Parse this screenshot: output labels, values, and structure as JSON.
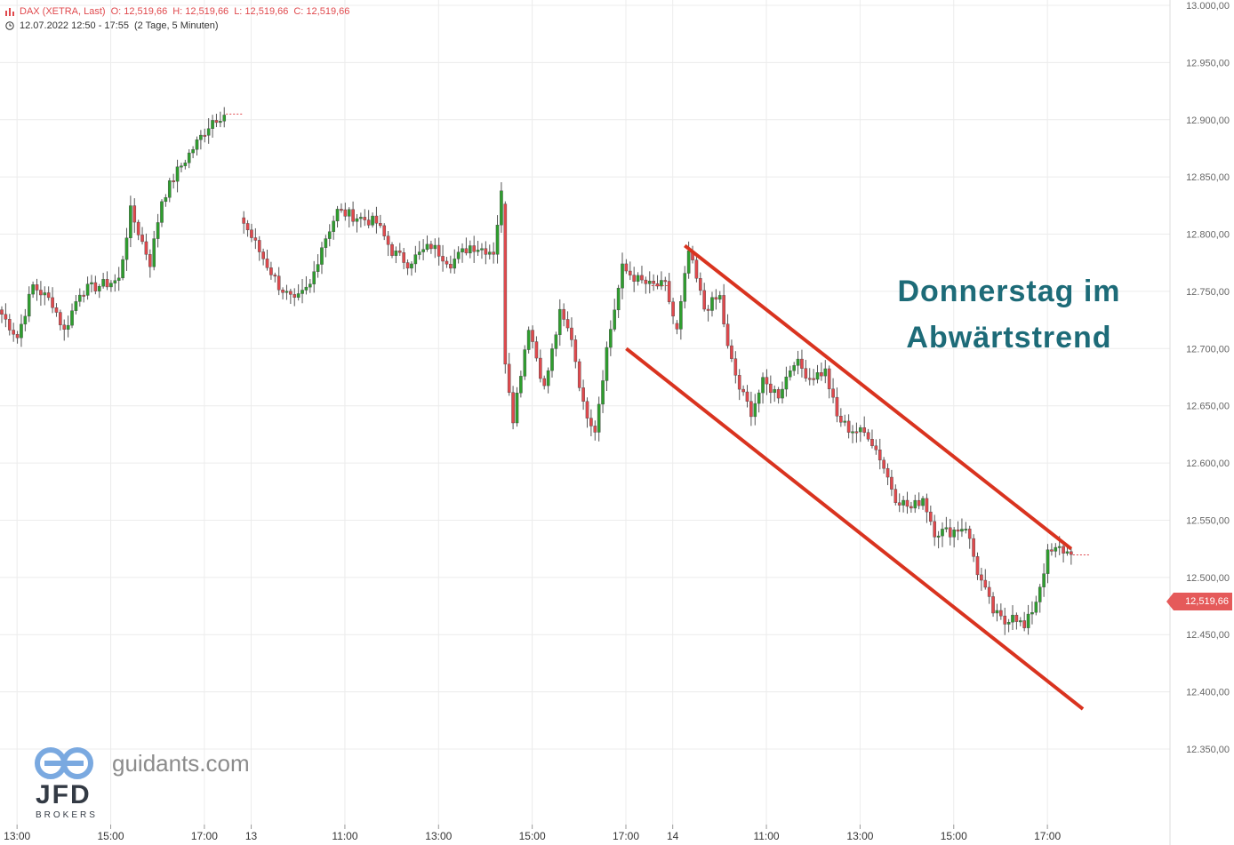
{
  "header": {
    "instrument": "DAX (XETRA, Last)",
    "open": "O: 12,519,66",
    "high": "H: 12,519,66",
    "low": "L: 12,519,66",
    "close": "C: 12,519,66",
    "timerange": "12.07.2022 12:50 - 17:55",
    "interval": "(2 Tage, 5 Minuten)"
  },
  "annotation": {
    "line1": "Donnerstag im",
    "line2": "Abwärtstrend",
    "color": "#1d6b78"
  },
  "watermark": {
    "site": "guidants.com",
    "broker": "JFD",
    "broker_sub": "BROKERS"
  },
  "last_price_label": "12,519,66",
  "colors": {
    "up": "#2e9e2e",
    "down": "#e0494d",
    "channel": "#d9331f",
    "grid": "#ececec",
    "axis_text": "#666666"
  },
  "chart_data": {
    "type": "candlestick",
    "title": "",
    "ylim": [
      12340,
      13000
    ],
    "y_ticks": [
      13000,
      12950,
      12900,
      12850,
      12800,
      12750,
      12700,
      12650,
      12600,
      12550,
      12500,
      12450,
      12400,
      12350
    ],
    "y_tick_labels": [
      "13.000,00",
      "12.950,00",
      "12.900,00",
      "12.850,00",
      "12.800,00",
      "12.750,00",
      "12.700,00",
      "12.650,00",
      "12.600,00",
      "12.550,00",
      "12.500,00",
      "12.450,00",
      "12.400,00",
      "12.350,00"
    ],
    "x_ticks": [
      {
        "label": "13:00",
        "t": 3
      },
      {
        "label": "15:00",
        "t": 27
      },
      {
        "label": "17:00",
        "t": 51
      },
      {
        "label": "13",
        "t": 63
      },
      {
        "label": "11:00",
        "t": 87
      },
      {
        "label": "13:00",
        "t": 111
      },
      {
        "label": "15:00",
        "t": 135
      },
      {
        "label": "17:00",
        "t": 159
      },
      {
        "label": "14",
        "t": 171
      },
      {
        "label": "11:00",
        "t": 195
      },
      {
        "label": "13:00",
        "t": 219
      },
      {
        "label": "15:00",
        "t": 243
      },
      {
        "label": "17:00",
        "t": 267
      }
    ],
    "anchor_closes": [
      [
        0,
        12730
      ],
      [
        4,
        12710
      ],
      [
        8,
        12755
      ],
      [
        13,
        12740
      ],
      [
        16,
        12715
      ],
      [
        20,
        12750
      ],
      [
        25,
        12755
      ],
      [
        30,
        12760
      ],
      [
        33,
        12820
      ],
      [
        38,
        12775
      ],
      [
        41,
        12830
      ],
      [
        45,
        12855
      ],
      [
        50,
        12880
      ],
      [
        54,
        12900
      ],
      [
        57,
        12905
      ],
      [
        62,
        12810
      ],
      [
        66,
        12785
      ],
      [
        71,
        12755
      ],
      [
        75,
        12740
      ],
      [
        79,
        12755
      ],
      [
        82,
        12790
      ],
      [
        86,
        12820
      ],
      [
        91,
        12815
      ],
      [
        96,
        12810
      ],
      [
        100,
        12785
      ],
      [
        104,
        12775
      ],
      [
        110,
        12790
      ],
      [
        115,
        12775
      ],
      [
        120,
        12790
      ],
      [
        126,
        12785
      ],
      [
        128,
        12835
      ],
      [
        129,
        12690
      ],
      [
        131,
        12640
      ],
      [
        135,
        12720
      ],
      [
        139,
        12665
      ],
      [
        143,
        12730
      ],
      [
        146,
        12710
      ],
      [
        149,
        12650
      ],
      [
        152,
        12630
      ],
      [
        155,
        12700
      ],
      [
        159,
        12770
      ],
      [
        163,
        12760
      ],
      [
        166,
        12755
      ],
      [
        170,
        12755
      ],
      [
        173,
        12715
      ],
      [
        176,
        12785
      ],
      [
        180,
        12735
      ],
      [
        184,
        12745
      ],
      [
        186,
        12700
      ],
      [
        189,
        12665
      ],
      [
        192,
        12645
      ],
      [
        195,
        12670
      ],
      [
        199,
        12660
      ],
      [
        203,
        12690
      ],
      [
        207,
        12675
      ],
      [
        211,
        12680
      ],
      [
        214,
        12640
      ],
      [
        217,
        12630
      ],
      [
        222,
        12625
      ],
      [
        225,
        12605
      ],
      [
        229,
        12570
      ],
      [
        233,
        12560
      ],
      [
        236,
        12570
      ],
      [
        239,
        12540
      ],
      [
        243,
        12540
      ],
      [
        247,
        12545
      ],
      [
        250,
        12505
      ],
      [
        254,
        12470
      ],
      [
        257,
        12460
      ],
      [
        259,
        12470
      ],
      [
        262,
        12455
      ],
      [
        265,
        12480
      ],
      [
        268,
        12520
      ],
      [
        271,
        12525
      ],
      [
        274,
        12520
      ]
    ],
    "last": 12519.66,
    "channel_upper": {
      "from": {
        "t": 175,
        "v": 12790
      },
      "to": {
        "t": 274,
        "v": 12525
      }
    },
    "channel_lower": {
      "from": {
        "t": 160,
        "v": 12700
      },
      "to": {
        "t": 277,
        "v": 12385
      }
    }
  }
}
